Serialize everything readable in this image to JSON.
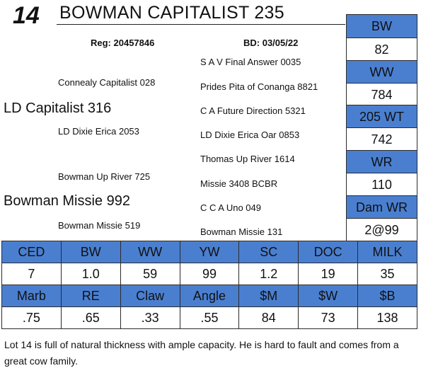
{
  "header": {
    "lot_number": "14",
    "animal_name": "BOWMAN CAPITALIST 235",
    "registration": "Reg: 20457846",
    "birth_date": "BD: 03/05/22"
  },
  "pedigree": {
    "sire": "LD Capitalist 316",
    "sire_sire": "Connealy Capitalist 028",
    "sire_dam": "LD Dixie Erica 2053",
    "dam": "Bowman Missie 992",
    "dam_sire": "Bowman Up River 725",
    "dam_dam": "Bowman Missie 519",
    "ggs": [
      "S A V Final Answer 0035",
      "Prides Pita of Conanga 8821",
      "C A Future Direction 5321",
      "LD Dixie Erica Oar 0853",
      "Thomas Up River 1614",
      "Missie 3408 BCBR",
      "C C A Uno 049",
      "Bowman Missie 131"
    ]
  },
  "side_stats": [
    {
      "label": "BW",
      "value": "82"
    },
    {
      "label": "WW",
      "value": "784"
    },
    {
      "label": "205 WT",
      "value": "742"
    },
    {
      "label": "WR",
      "value": "110"
    },
    {
      "label": "Dam WR",
      "value": "2@99"
    }
  ],
  "epd": {
    "row1_headers": [
      "CED",
      "BW",
      "WW",
      "YW",
      "SC",
      "DOC",
      "MILK"
    ],
    "row1_values": [
      "7",
      "1.0",
      "59",
      "99",
      "1.2",
      "19",
      "35"
    ],
    "row2_headers": [
      "Marb",
      "RE",
      "Claw",
      "Angle",
      "$M",
      "$W",
      "$B"
    ],
    "row2_values": [
      ".75",
      ".65",
      ".33",
      ".55",
      "84",
      "73",
      "138"
    ]
  },
  "description": "Lot 14 is full of natural thickness with ample capacity.  He is hard to fault and comes from a great cow family.",
  "colors": {
    "header_fill": "#4a7fd0",
    "border": "#2b2b2b"
  }
}
